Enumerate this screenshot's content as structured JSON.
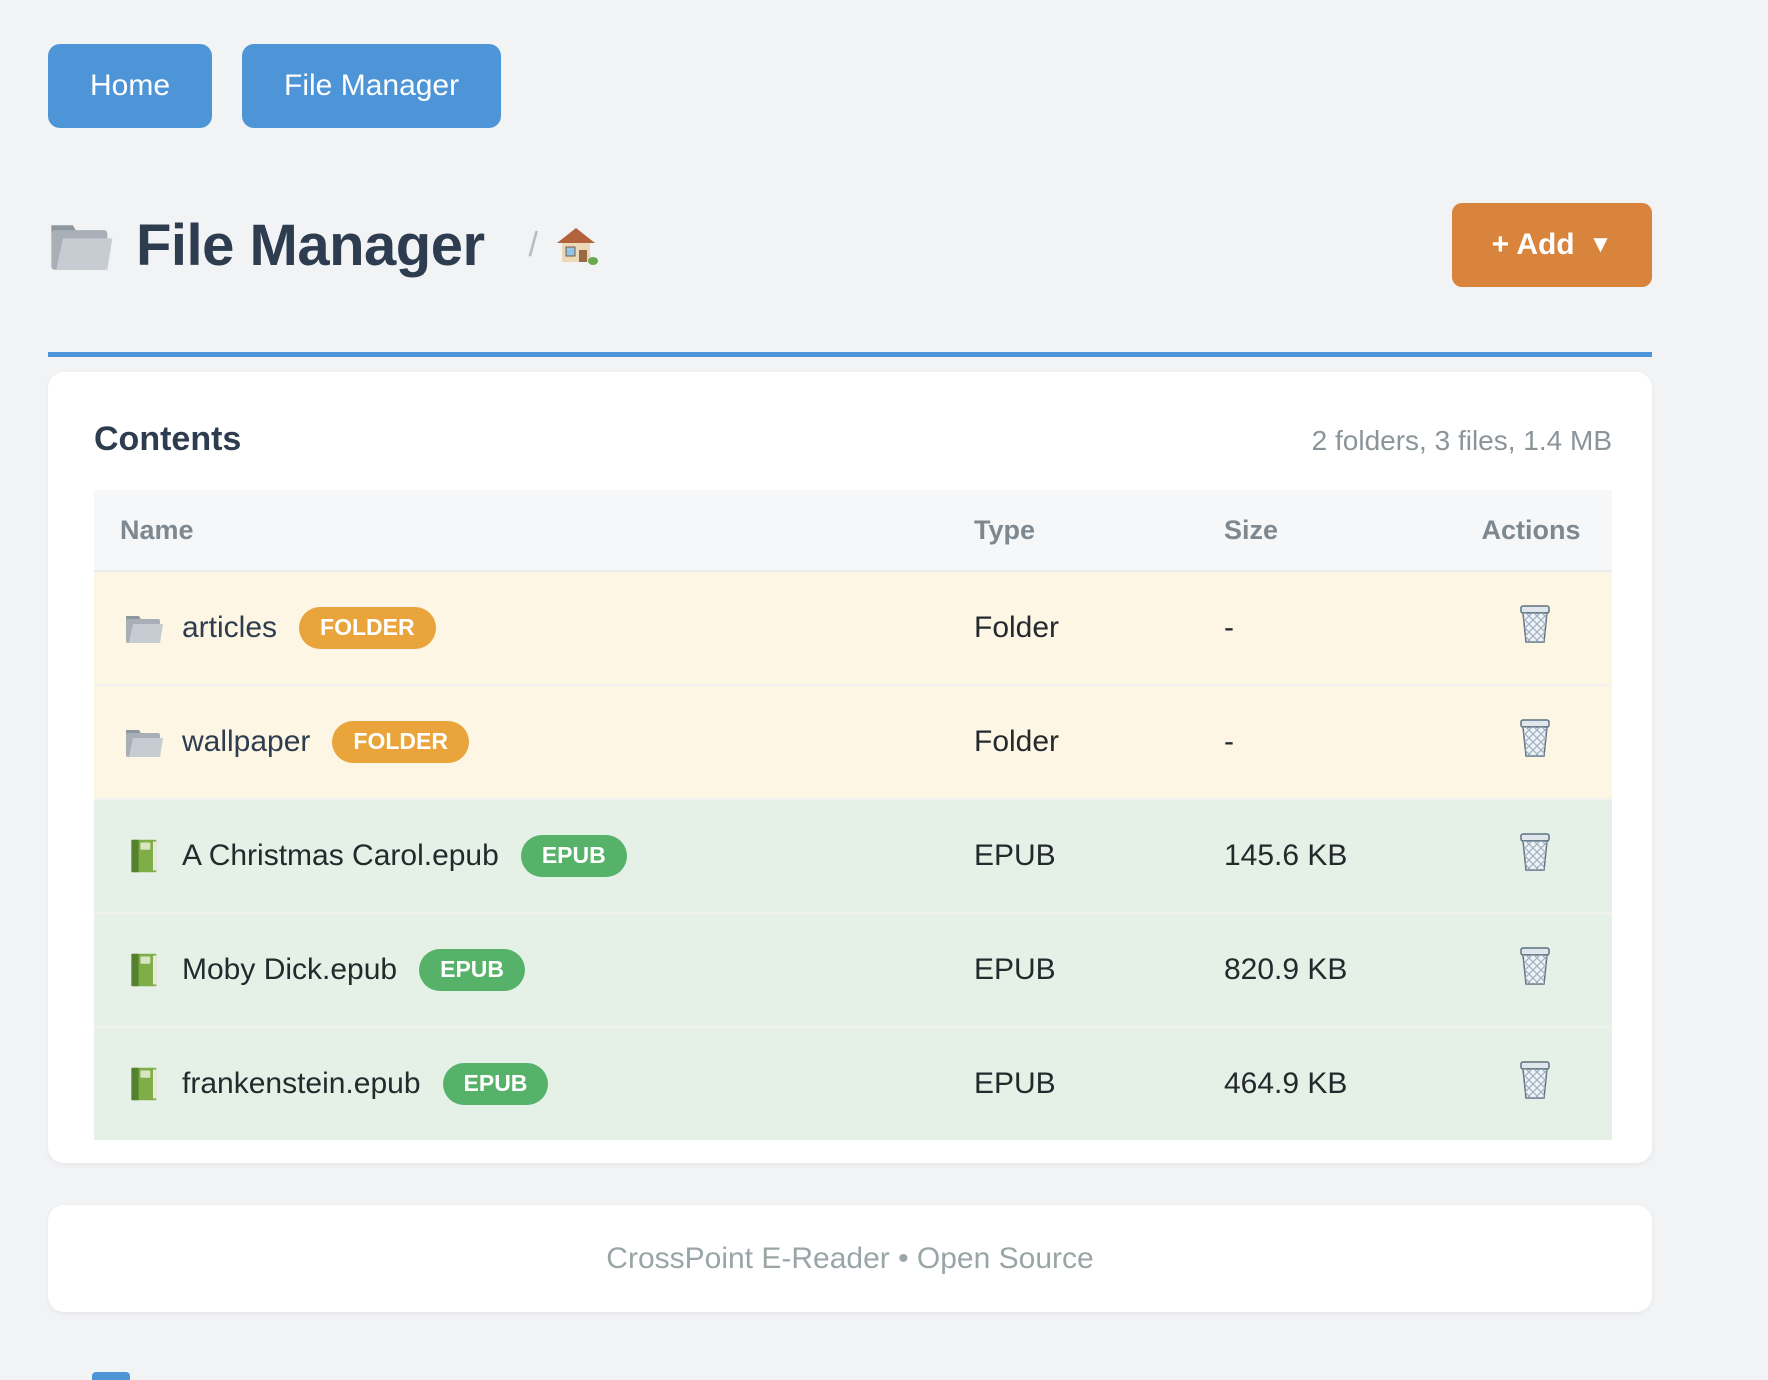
{
  "nav": {
    "home_label": "Home",
    "file_manager_label": "File Manager"
  },
  "header": {
    "title": "File Manager",
    "title_icon": "folder-icon",
    "breadcrumb_separator": "/",
    "breadcrumb_home_icon": "house-icon",
    "add_button": {
      "label": "+ Add",
      "caret": "▼"
    }
  },
  "contents": {
    "heading": "Contents",
    "summary": "2 folders, 3 files, 1.4 MB",
    "table": {
      "columns": [
        "Name",
        "Type",
        "Size",
        "Actions"
      ],
      "rows": [
        {
          "name": "articles",
          "badge": "FOLDER",
          "type": "Folder",
          "size": "-",
          "kind": "folder",
          "icon": "folder-icon",
          "action_icon": "trash-icon"
        },
        {
          "name": "wallpaper",
          "badge": "FOLDER",
          "type": "Folder",
          "size": "-",
          "kind": "folder",
          "icon": "folder-icon",
          "action_icon": "trash-icon"
        },
        {
          "name": "A Christmas Carol.epub",
          "badge": "EPUB",
          "type": "EPUB",
          "size": "145.6 KB",
          "kind": "epub",
          "icon": "green-book-icon",
          "action_icon": "trash-icon"
        },
        {
          "name": "Moby Dick.epub",
          "badge": "EPUB",
          "type": "EPUB",
          "size": "820.9 KB",
          "kind": "epub",
          "icon": "green-book-icon",
          "action_icon": "trash-icon"
        },
        {
          "name": "frankenstein.epub",
          "badge": "EPUB",
          "type": "EPUB",
          "size": "464.9 KB",
          "kind": "epub",
          "icon": "green-book-icon",
          "action_icon": "trash-icon"
        }
      ]
    }
  },
  "footer": {
    "text": "CrossPoint E-Reader • Open Source"
  },
  "colors": {
    "accent_blue": "#4e95d8",
    "accent_orange": "#d9843c",
    "badge_folder": "#e9a43b",
    "badge_epub": "#57b269",
    "folder_row_bg": "#fdf6e4",
    "epub_row_bg": "#e5f0e6",
    "header_row_bg": "#f6f7f9",
    "page_bg": "#f2f3f5",
    "title_text": "#2d3c4e",
    "muted_text": "#8b9599"
  }
}
